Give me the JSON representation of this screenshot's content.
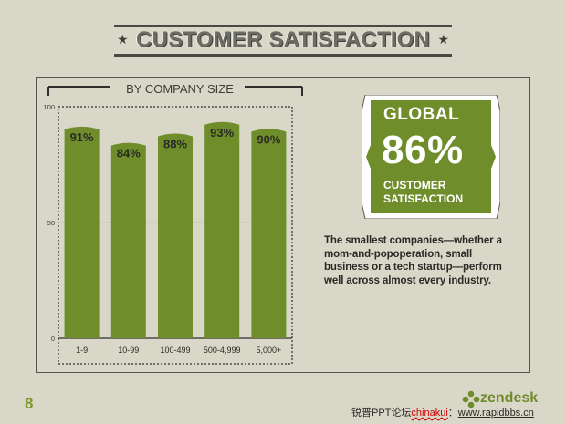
{
  "title": {
    "text": "CUSTOMER SATISFACTION",
    "star_left": "★",
    "star_right": "★"
  },
  "chart_data": {
    "type": "bar",
    "subtitle": "BY COMPANY SIZE",
    "categories": [
      "1-9",
      "10-99",
      "100-499",
      "500-4,999",
      "5,000+"
    ],
    "values": [
      91,
      84,
      88,
      93,
      90
    ],
    "data_labels": [
      "91%",
      "84%",
      "88%",
      "93%",
      "90%"
    ],
    "yticks": [
      0,
      50,
      100
    ],
    "ylim": [
      0,
      100
    ],
    "bar_color": "#6f8d2a",
    "grid": true
  },
  "badge": {
    "line1": "GLOBAL",
    "value": "86%",
    "line2": "CUSTOMER",
    "line3": "SATISFACTION",
    "color": "#6f8d2a"
  },
  "description": "The smallest companies—whether a mom-and-popoperation, small business or a tech startup—perform well across almost every industry.",
  "footer": {
    "page_number": "8",
    "logo_text": "zendesk",
    "credit_prefix": "锐普PPT论坛",
    "credit_user": "chinakui",
    "credit_sep": "：",
    "credit_url": "www.rapidbbs.cn"
  }
}
